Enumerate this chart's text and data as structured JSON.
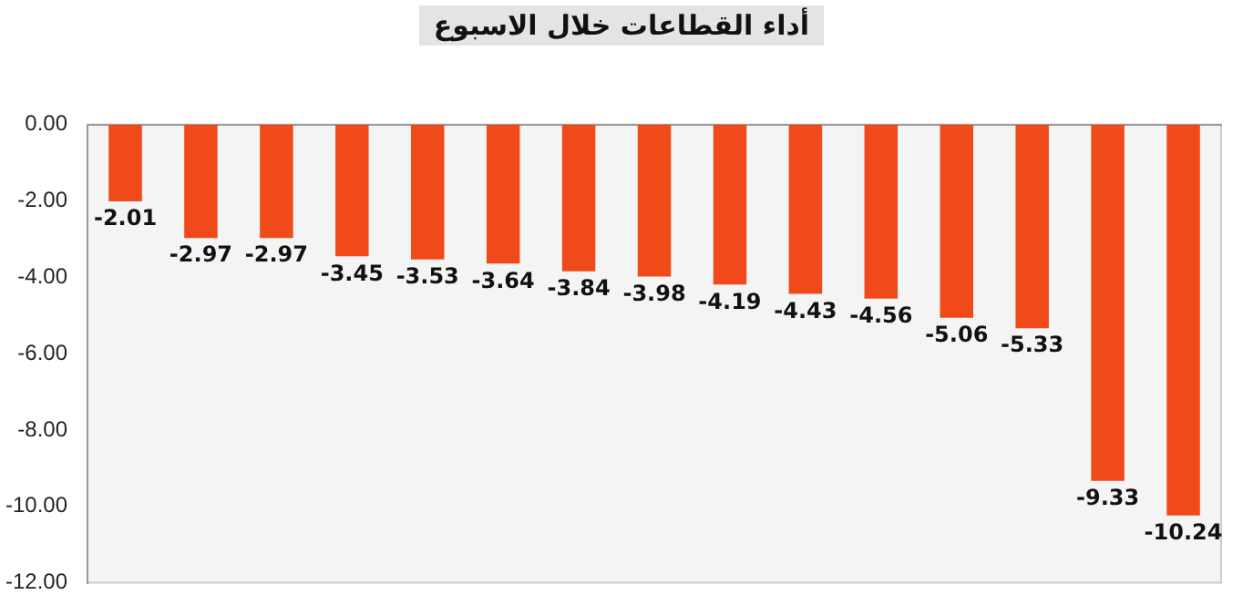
{
  "chart_data": {
    "type": "bar",
    "title": "أداء القطاعات خلال الاسبوع",
    "categories": [
      null,
      null,
      null,
      null,
      null,
      null,
      null,
      null,
      null,
      null,
      null,
      null,
      null,
      null,
      null
    ],
    "values": [
      -2.01,
      -2.97,
      -2.97,
      -3.45,
      -3.53,
      -3.64,
      -3.84,
      -3.98,
      -4.19,
      -4.43,
      -4.56,
      -5.06,
      -5.33,
      -9.33,
      -10.24
    ],
    "color": "#f04a1a",
    "ylim": [
      -12,
      0
    ],
    "yticks": [
      {
        "value": 0,
        "label": "0.00"
      },
      {
        "value": -2,
        "label": "-2.00"
      },
      {
        "value": -4,
        "label": "-4.00"
      },
      {
        "value": -6,
        "label": "-6.00"
      },
      {
        "value": -8,
        "label": "-8.00"
      },
      {
        "value": -10,
        "label": "-10.00"
      },
      {
        "value": -12,
        "label": "-12.00"
      }
    ],
    "grid": false,
    "legend": false,
    "data_labels": true
  }
}
